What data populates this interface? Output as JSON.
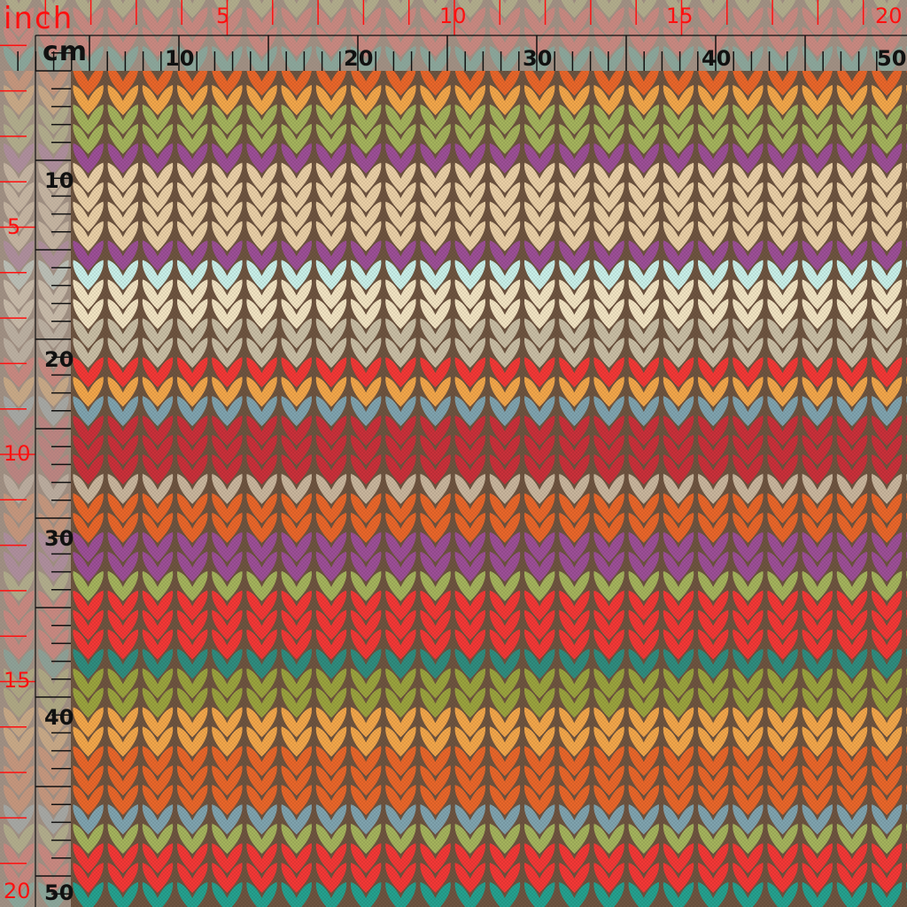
{
  "ruler": {
    "inch_unit": "inch",
    "cm_unit": "cm",
    "inch_labels_top": [
      "5",
      "10",
      "15",
      "20"
    ],
    "cm_labels_top": [
      "10",
      "20",
      "30",
      "40",
      "50"
    ],
    "inch_labels_left": [
      "5",
      "10",
      "15",
      "20"
    ],
    "cm_labels_left": [
      "10",
      "20",
      "30",
      "40",
      "50"
    ],
    "inch_color": "#ff1010",
    "cm_color": "#111111"
  },
  "fabric": {
    "pattern": "knit-stitch-stripes",
    "background_color": "#6e5440",
    "stripe_colors": [
      "#e8662a",
      "#f2a64a",
      "#a4b35c",
      "#a4b35c",
      "#9c4f96",
      "#e9cfa6",
      "#e9cfa6",
      "#e9cfa6",
      "#e9cfa6",
      "#9c4f96",
      "#c8efe8",
      "#f1e3c2",
      "#f1e3c2",
      "#c8bda4",
      "#c8bda4",
      "#f23836",
      "#f2a64a",
      "#7fa3ae",
      "#c9303a",
      "#c9303a",
      "#c9303a",
      "#c8b59c",
      "#e8662a",
      "#e8662a",
      "#9c4f96",
      "#9c4f96",
      "#a4b35c",
      "#f23836",
      "#f23836",
      "#f23836",
      "#2f8c7e",
      "#9aa33e",
      "#9aa33e",
      "#f2a64a",
      "#f2a64a",
      "#e8662a",
      "#e8662a",
      "#e8662a",
      "#7fa3ae",
      "#a4b35c",
      "#f23836",
      "#f23836",
      "#25a08e"
    ]
  }
}
